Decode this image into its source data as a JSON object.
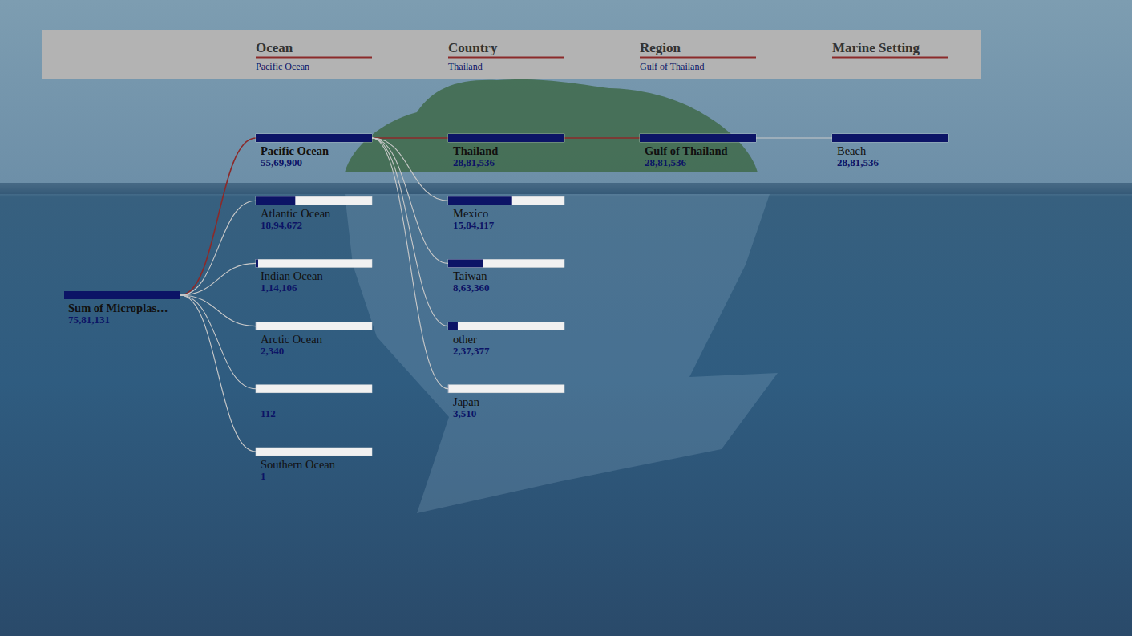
{
  "chart_data": {
    "type": "decomposition_tree",
    "color": "#0c1466",
    "header": [
      {
        "title": "Ocean",
        "filter": "Pacific Ocean"
      },
      {
        "title": "Country",
        "filter": "Thailand"
      },
      {
        "title": "Region",
        "filter": "Gulf of Thailand"
      },
      {
        "title": "Marine Setting"
      }
    ],
    "root": {
      "label": "Sum of Microplas…",
      "value": 7581131,
      "value_label": "75,81,131"
    },
    "levels": [
      {
        "categories": [
          "Pacific Ocean",
          "Atlantic Ocean",
          "Indian Ocean",
          "Arctic Ocean",
          null,
          "Southern Ocean"
        ],
        "values": [
          5569900,
          1894672,
          114106,
          2340,
          112,
          1
        ],
        "value_labels": [
          "55,69,900",
          "18,94,672",
          "1,14,106",
          "2,340",
          "112",
          "1"
        ],
        "selected": 0
      },
      {
        "categories": [
          "Thailand",
          "Mexico",
          "Taiwan",
          "other",
          "Japan"
        ],
        "values": [
          2881536,
          1584117,
          863360,
          237377,
          3510
        ],
        "value_labels": [
          "28,81,536",
          "15,84,117",
          "8,63,360",
          "2,37,377",
          "3,510"
        ],
        "selected": 0
      },
      {
        "categories": [
          "Gulf of Thailand"
        ],
        "values": [
          2881536
        ],
        "value_labels": [
          "28,81,536"
        ],
        "selected": 0
      },
      {
        "categories": [
          "Beach"
        ],
        "values": [
          2881536
        ],
        "value_labels": [
          "28,81,536"
        ]
      }
    ]
  }
}
